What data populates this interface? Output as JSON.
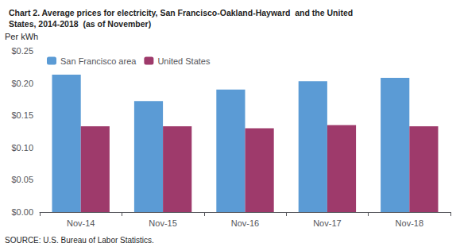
{
  "chart_data": {
    "type": "bar",
    "title": "Chart 2. Average prices for electricity, San Francisco-Oakland-Hayward  and the United\nStates, 2014-2018  (as of November)",
    "ylabel": "Per kWh",
    "annotations": [
      "SOURCE: U.S. Bureau of Labor Statistics."
    ],
    "categories": [
      "Nov-14",
      "Nov-15",
      "Nov-16",
      "Nov-17",
      "Nov-18"
    ],
    "series": [
      {
        "name": "San Francisco area",
        "color": "#5B9BD5",
        "values": [
          0.213,
          0.172,
          0.19,
          0.203,
          0.208
        ]
      },
      {
        "name": "United States",
        "color": "#9E3A6B",
        "values": [
          0.133,
          0.133,
          0.13,
          0.135,
          0.133
        ]
      }
    ],
    "ylim": [
      0.0,
      0.25
    ],
    "yticks": [
      {
        "value": 0.0,
        "label": "$0.00"
      },
      {
        "value": 0.05,
        "label": "$0.05"
      },
      {
        "value": 0.1,
        "label": "$0.10"
      },
      {
        "value": 0.15,
        "label": "$0.15"
      },
      {
        "value": 0.2,
        "label": "$0.20"
      },
      {
        "value": 0.25,
        "label": "$0.25"
      }
    ],
    "grid": false,
    "legend": "upper left"
  }
}
